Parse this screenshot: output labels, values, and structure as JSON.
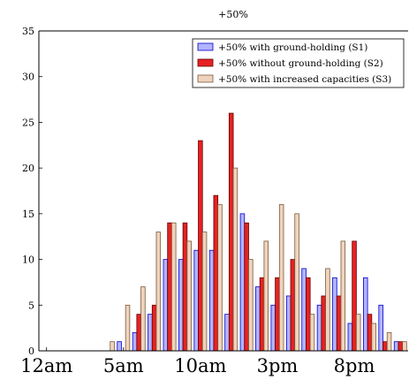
{
  "chart_data": {
    "type": "bar",
    "title": "+50%",
    "xlabel": "",
    "ylabel": "",
    "ylim": [
      0,
      35
    ],
    "yticks": [
      0,
      5,
      10,
      15,
      20,
      25,
      30,
      35
    ],
    "x_tick_labels": [
      {
        "hour": 0,
        "label": "12am"
      },
      {
        "hour": 5,
        "label": "5am"
      },
      {
        "hour": 10,
        "label": "10am"
      },
      {
        "hour": 15,
        "label": "3pm"
      },
      {
        "hour": 20,
        "label": "8pm"
      }
    ],
    "x": [
      0,
      1,
      2,
      3,
      4,
      5,
      6,
      7,
      8,
      9,
      10,
      11,
      12,
      13,
      14,
      15,
      16,
      17,
      18,
      19,
      20,
      21,
      22,
      23
    ],
    "legend_position": "top-right",
    "series": [
      {
        "name": "+50% with ground-holding (S1)",
        "color": "#b3b3ff",
        "edge": "#0000cc",
        "values": [
          0,
          0,
          0,
          0,
          0,
          1,
          2,
          4,
          10,
          10,
          11,
          11,
          4,
          15,
          7,
          5,
          6,
          9,
          5,
          8,
          3,
          8,
          5,
          1
        ]
      },
      {
        "name": "+50% without ground-holding (S2)",
        "color": "#e62222",
        "edge": "#660000",
        "values": [
          0,
          0,
          0,
          0,
          0,
          0,
          4,
          5,
          14,
          14,
          23,
          17,
          26,
          14,
          8,
          8,
          10,
          8,
          6,
          6,
          12,
          4,
          1,
          1
        ]
      },
      {
        "name": "+50% with increased capacities (S3)",
        "color": "#efd3bd",
        "edge": "#7a5a3d",
        "values": [
          0,
          0,
          0,
          0,
          1,
          5,
          7,
          13,
          14,
          12,
          13,
          16,
          20,
          10,
          12,
          16,
          15,
          4,
          9,
          12,
          4,
          3,
          2,
          1
        ]
      }
    ]
  }
}
